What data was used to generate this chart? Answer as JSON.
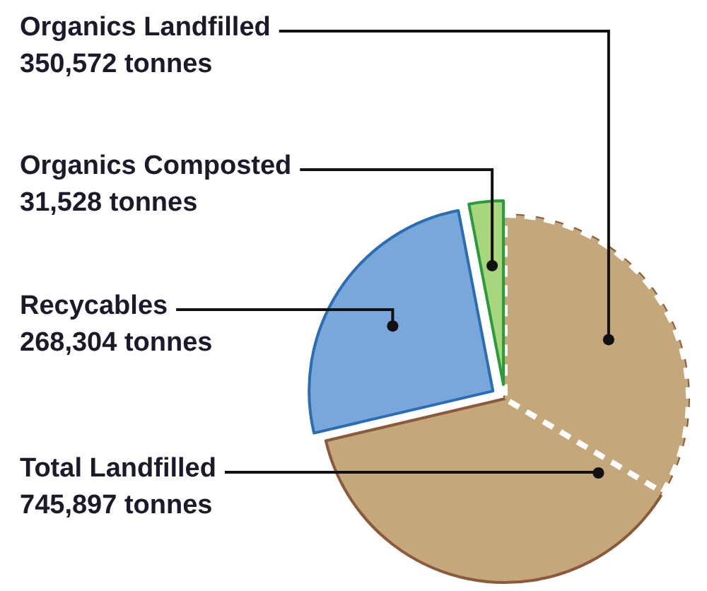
{
  "chart_data": {
    "type": "pie",
    "categories": [
      "Organics Landfilled",
      "Total Landfilled",
      "Recycables",
      "Organics Composted"
    ],
    "values": [
      350572,
      745897,
      268304,
      31528
    ],
    "value_labels": [
      "350,572 tonnes",
      "745,897 tonnes",
      "268,304 tonnes",
      "31,528 tonnes"
    ],
    "colors": [
      "#c4a77a",
      "#c4a77a",
      "#7aa7d9",
      "#a8d67e"
    ]
  }
}
